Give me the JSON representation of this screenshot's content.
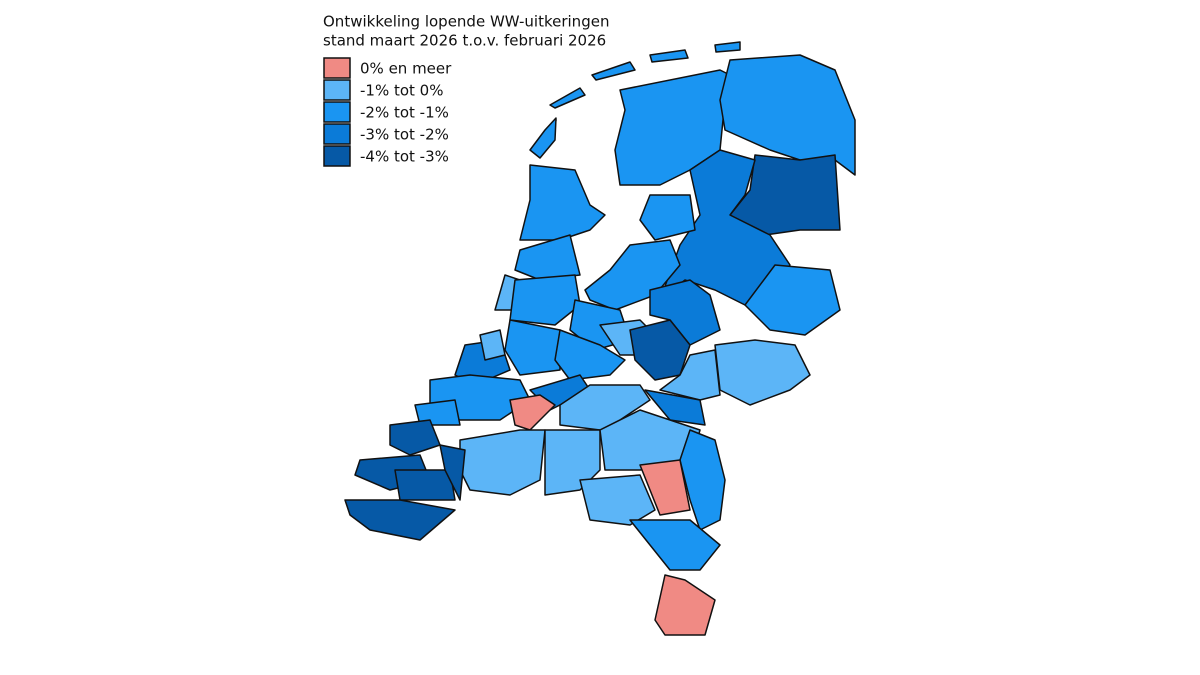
{
  "title": [
    "Ontwikkeling lopende WW-uitkeringen",
    "stand maart 2026 t.o.v. februari 2026"
  ],
  "legend": [
    {
      "label": "0% en meer",
      "color": "#f08a84"
    },
    {
      "label": "-1% tot 0%",
      "color": "#5cb5f7"
    },
    {
      "label": "-2% tot -1%",
      "color": "#1a95f2"
    },
    {
      "label": "-3% tot -2%",
      "color": "#0b7bd8"
    },
    {
      "label": "-4% tot -3%",
      "color": "#0659a6"
    }
  ]
}
